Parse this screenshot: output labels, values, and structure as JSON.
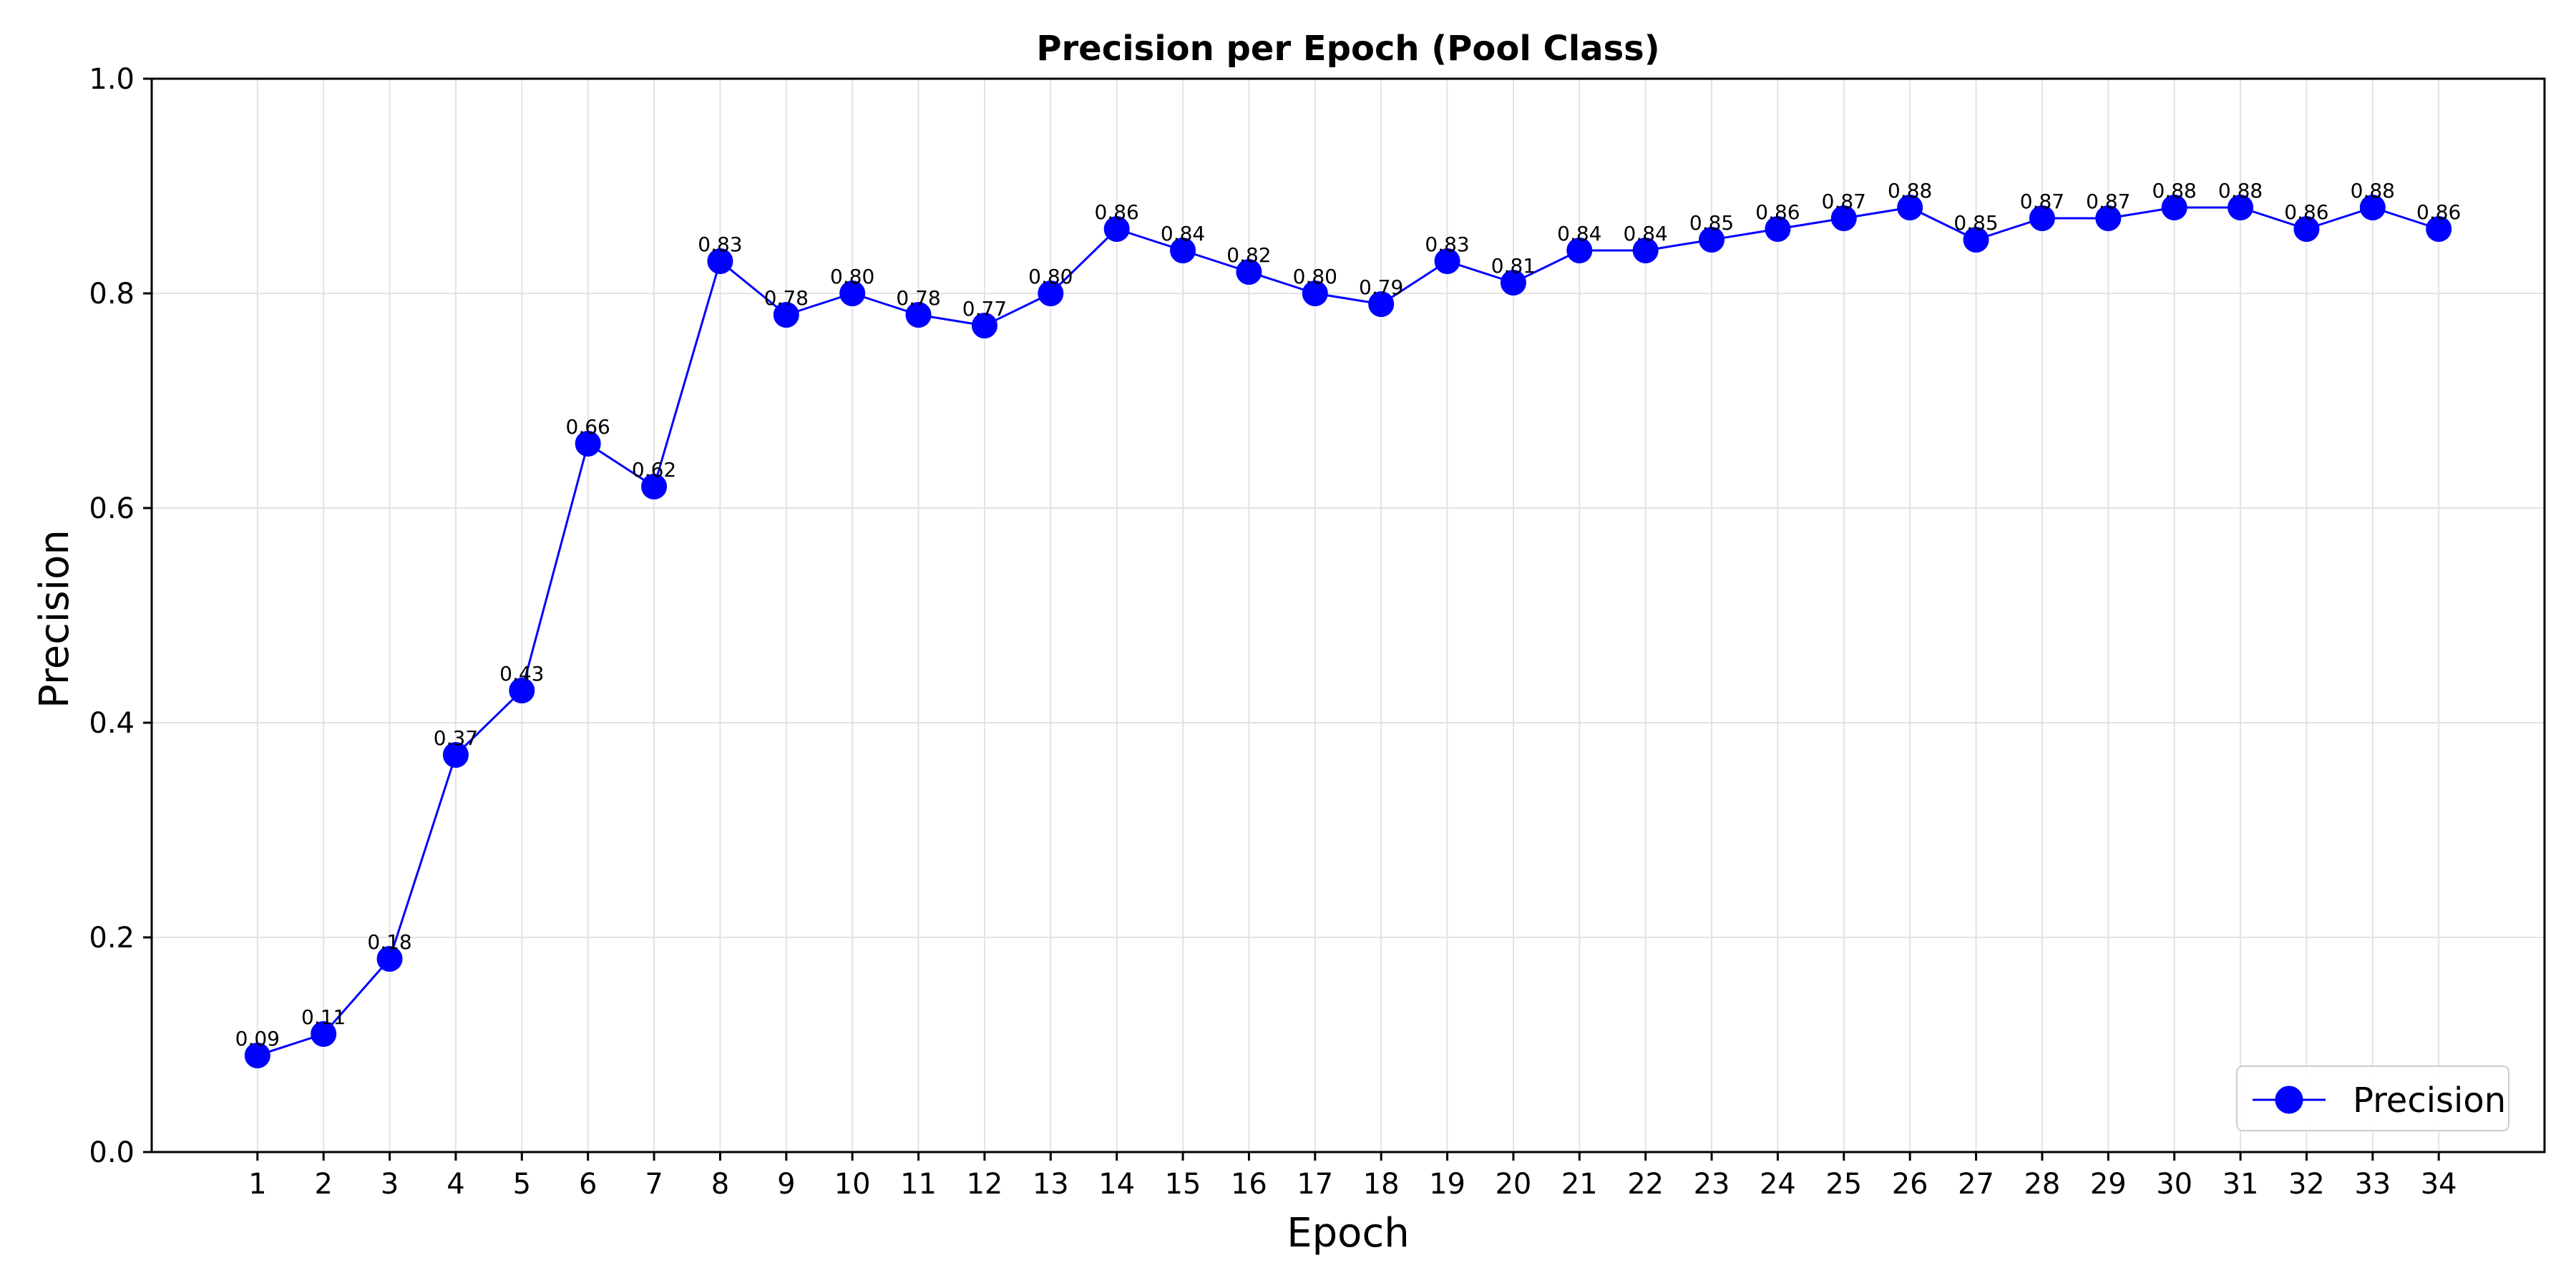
{
  "chart_data": {
    "type": "line",
    "title": "Precision per Epoch (Pool Class)",
    "xlabel": "Epoch",
    "ylabel": "Precision",
    "x": [
      1,
      2,
      3,
      4,
      5,
      6,
      7,
      8,
      9,
      10,
      11,
      12,
      13,
      14,
      15,
      16,
      17,
      18,
      19,
      20,
      21,
      22,
      23,
      24,
      25,
      26,
      27,
      28,
      29,
      30,
      31,
      32,
      33,
      34
    ],
    "series": [
      {
        "name": "Precision",
        "color": "#0000ff",
        "marker": "circle",
        "values": [
          0.09,
          0.11,
          0.18,
          0.37,
          0.43,
          0.66,
          0.62,
          0.83,
          0.78,
          0.8,
          0.78,
          0.77,
          0.8,
          0.86,
          0.84,
          0.82,
          0.8,
          0.79,
          0.83,
          0.81,
          0.84,
          0.84,
          0.85,
          0.86,
          0.87,
          0.88,
          0.85,
          0.87,
          0.87,
          0.88,
          0.88,
          0.86,
          0.88,
          0.86
        ],
        "data_labels": [
          "0.09",
          "0.11",
          "0.18",
          "0.37",
          "0.43",
          "0.66",
          "0.62",
          "0.83",
          "0.78",
          "0.80",
          "0.78",
          "0.77",
          "0.80",
          "0.86",
          "0.84",
          "0.82",
          "0.80",
          "0.79",
          "0.83",
          "0.81",
          "0.84",
          "0.84",
          "0.85",
          "0.86",
          "0.87",
          "0.88",
          "0.85",
          "0.87",
          "0.87",
          "0.88",
          "0.88",
          "0.86",
          "0.88",
          "0.86"
        ]
      }
    ],
    "xlim": [
      -0.6,
      35.6
    ],
    "ylim": [
      0.0,
      1.0
    ],
    "yticks": [
      "0.0",
      "0.2",
      "0.4",
      "0.6",
      "0.8",
      "1.0"
    ],
    "xticks": [
      "1",
      "2",
      "3",
      "4",
      "5",
      "6",
      "7",
      "8",
      "9",
      "10",
      "11",
      "12",
      "13",
      "14",
      "15",
      "16",
      "17",
      "18",
      "19",
      "20",
      "21",
      "22",
      "23",
      "24",
      "25",
      "26",
      "27",
      "28",
      "29",
      "30",
      "31",
      "32",
      "33",
      "34"
    ],
    "grid": true,
    "legend_position": "lower-right"
  }
}
